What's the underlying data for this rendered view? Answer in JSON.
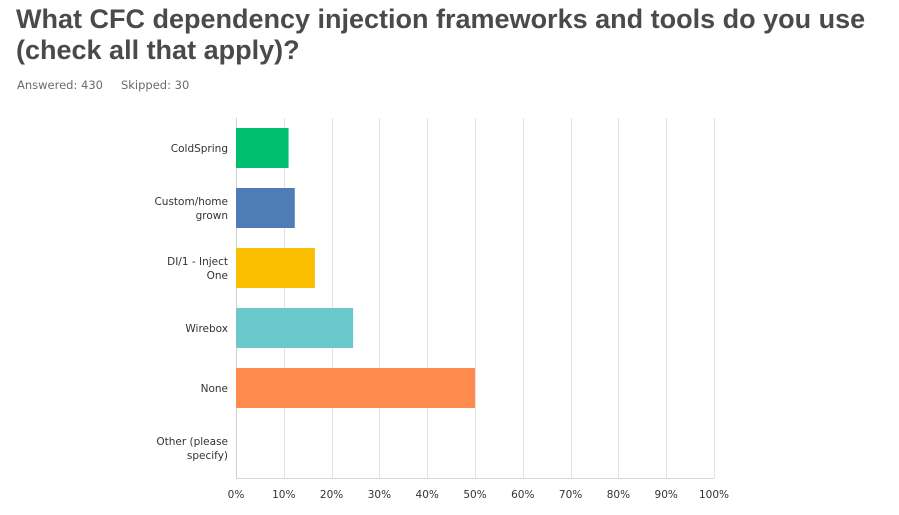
{
  "question": {
    "title": "What CFC dependency injection frameworks and tools do you use (check all that apply)?",
    "answered": "Answered: 430",
    "skipped": "Skipped: 30"
  },
  "chart_data": {
    "type": "bar",
    "orientation": "horizontal",
    "categories": [
      [
        "ColdSpring"
      ],
      [
        "Custom/home",
        "grown"
      ],
      [
        "DI/1 - Inject",
        "One"
      ],
      [
        "Wirebox"
      ],
      [
        "None"
      ],
      [
        "Other (please",
        "specify)"
      ]
    ],
    "values": [
      11,
      12.3,
      16.5,
      24.5,
      50,
      0
    ],
    "colors": [
      "#00bf6f",
      "#507cb6",
      "#f9be00",
      "#6bc8cd",
      "#ff8b4f",
      "#cccccc"
    ],
    "xlim": [
      0,
      100
    ],
    "xticks": [
      "0%",
      "10%",
      "20%",
      "30%",
      "40%",
      "50%",
      "60%",
      "70%",
      "80%",
      "90%",
      "100%"
    ],
    "grid": true
  }
}
